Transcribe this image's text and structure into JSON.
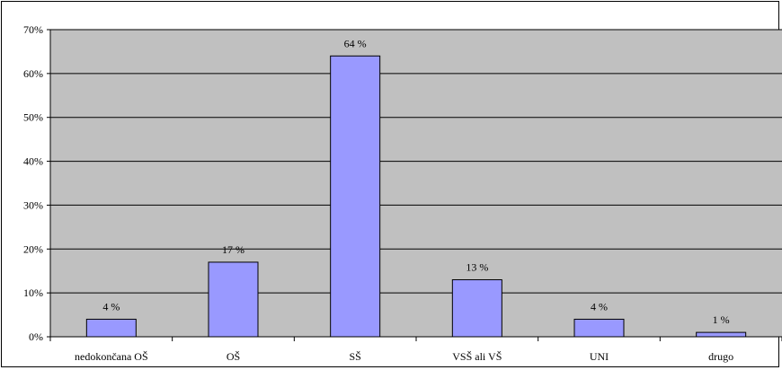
{
  "chart_data": {
    "type": "bar",
    "title": "",
    "xlabel": "",
    "ylabel": "",
    "categories": [
      "nedokončana OŠ",
      "OŠ",
      "SŠ",
      "VSŠ ali VŠ",
      "UNI",
      "drugo"
    ],
    "values": [
      4,
      17,
      64,
      13,
      4,
      1
    ],
    "data_labels": [
      "4 %",
      "17 %",
      "64 %",
      "13 %",
      "4 %",
      "1 %"
    ],
    "ylim": [
      0,
      70
    ],
    "yticks": [
      0,
      10,
      20,
      30,
      40,
      50,
      60,
      70
    ],
    "ytick_labels": [
      "0%",
      "10%",
      "20%",
      "30%",
      "40%",
      "50%",
      "60%",
      "70%"
    ],
    "grid": true,
    "legend": "none"
  },
  "colors": {
    "plot_background": "#c0c0c0",
    "bar_fill": "#9999ff",
    "bar_stroke": "#000000",
    "gridline": "#000000"
  }
}
